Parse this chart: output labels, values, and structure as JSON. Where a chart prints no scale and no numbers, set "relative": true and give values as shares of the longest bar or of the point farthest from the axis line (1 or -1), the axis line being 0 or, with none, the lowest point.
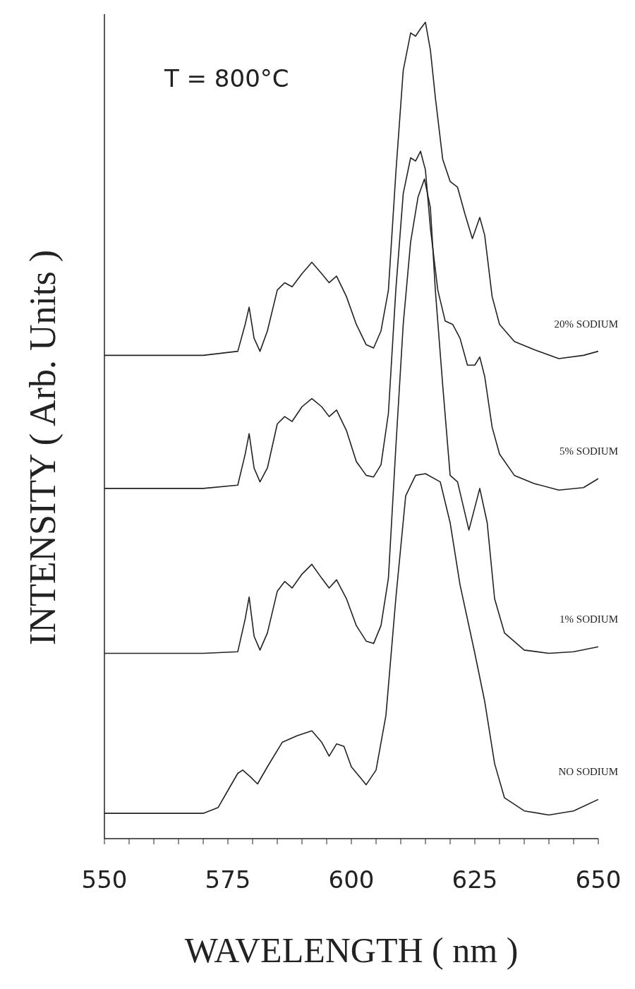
{
  "chart_data": {
    "type": "line",
    "relative": true,
    "xlabel": "WAVELENGTH ( nm )",
    "ylabel": "INTENSITY ( Arb. Units )",
    "annotations": [
      "T = 800°C"
    ],
    "marker": "none",
    "line_style": "solid",
    "xlim": [
      550,
      650
    ],
    "xticks": [
      550,
      {
        "value": 555,
        "label": null
      },
      {
        "value": 560,
        "label": null
      },
      {
        "value": 565,
        "label": null
      },
      {
        "value": 570,
        "label": null
      },
      575,
      {
        "value": 580,
        "label": null
      },
      {
        "value": 585,
        "label": null
      },
      {
        "value": 590,
        "label": null
      },
      {
        "value": 595,
        "label": null
      },
      600,
      {
        "value": 605,
        "label": null
      },
      {
        "value": 610,
        "label": null
      },
      {
        "value": 615,
        "label": null
      },
      {
        "value": 620,
        "label": null
      },
      625,
      {
        "value": 630,
        "label": null
      },
      {
        "value": 635,
        "label": null
      },
      {
        "value": 640,
        "label": null
      },
      {
        "value": 645,
        "label": null
      },
      650
    ],
    "series": [
      {
        "name": "20% SODIUM",
        "color": "#222222",
        "x": [
          550,
          570,
          577,
          578.5,
          579.3,
          580.3,
          581.5,
          583,
          585,
          586.5,
          588,
          590,
          592,
          594,
          595.5,
          597,
          599,
          601,
          603,
          604.5,
          606,
          607.5,
          609,
          610.5,
          612,
          613,
          614,
          615,
          616,
          617,
          618.5,
          620,
          621.5,
          623,
          624.5,
          626,
          627,
          628.5,
          630,
          633,
          637,
          642,
          647,
          650
        ],
        "values": [
          0.592,
          0.592,
          0.597,
          0.63,
          0.651,
          0.613,
          0.597,
          0.622,
          0.672,
          0.681,
          0.676,
          0.692,
          0.706,
          0.692,
          0.681,
          0.689,
          0.664,
          0.63,
          0.605,
          0.601,
          0.622,
          0.672,
          0.815,
          0.941,
          0.987,
          0.983,
          0.992,
          1.0,
          0.966,
          0.908,
          0.832,
          0.805,
          0.798,
          0.765,
          0.735,
          0.761,
          0.739,
          0.664,
          0.63,
          0.609,
          0.599,
          0.588,
          0.592,
          0.597
        ]
      },
      {
        "name": "5% SODIUM",
        "color": "#222222",
        "x": [
          550,
          570,
          577,
          578.5,
          579.3,
          580.3,
          581.5,
          583,
          585,
          586.5,
          588,
          590,
          592,
          594,
          595.5,
          597,
          599,
          601,
          603,
          604.5,
          606,
          607.5,
          609,
          610.5,
          612,
          613,
          614,
          615,
          616,
          617.5,
          619,
          620.5,
          622,
          623.5,
          625,
          626,
          627,
          628.5,
          630,
          633,
          637,
          642,
          647,
          650
        ],
        "values": [
          0.429,
          0.429,
          0.433,
          0.471,
          0.496,
          0.454,
          0.437,
          0.454,
          0.508,
          0.517,
          0.511,
          0.529,
          0.539,
          0.529,
          0.517,
          0.525,
          0.5,
          0.462,
          0.445,
          0.443,
          0.458,
          0.521,
          0.672,
          0.79,
          0.834,
          0.83,
          0.842,
          0.819,
          0.748,
          0.672,
          0.634,
          0.63,
          0.613,
          0.58,
          0.58,
          0.59,
          0.566,
          0.504,
          0.471,
          0.445,
          0.435,
          0.427,
          0.43,
          0.441
        ]
      },
      {
        "name": "1% SODIUM",
        "color": "#222222",
        "x": [
          550,
          570,
          577,
          578.5,
          579.3,
          580.3,
          581.5,
          583,
          585,
          586.5,
          588,
          590,
          592,
          594,
          595.5,
          597,
          599,
          601,
          603,
          604.5,
          606,
          607.5,
          609,
          610.5,
          612,
          613.5,
          614.8,
          616,
          617,
          618.5,
          620,
          621.5,
          623.8,
          626,
          627.5,
          629,
          631,
          635,
          640,
          645,
          650
        ],
        "values": [
          0.227,
          0.227,
          0.229,
          0.269,
          0.296,
          0.248,
          0.231,
          0.252,
          0.303,
          0.315,
          0.307,
          0.324,
          0.336,
          0.319,
          0.307,
          0.317,
          0.294,
          0.261,
          0.242,
          0.239,
          0.261,
          0.319,
          0.479,
          0.63,
          0.731,
          0.786,
          0.808,
          0.773,
          0.672,
          0.555,
          0.445,
          0.437,
          0.378,
          0.429,
          0.387,
          0.294,
          0.252,
          0.231,
          0.227,
          0.229,
          0.235
        ]
      },
      {
        "name": "NO SODIUM",
        "color": "#222222",
        "x": [
          550,
          570,
          573,
          575,
          577,
          578,
          579.5,
          581,
          583,
          586,
          589,
          592,
          594,
          595.5,
          597,
          598.5,
          600,
          603,
          605,
          607,
          609,
          611,
          613,
          615,
          618,
          620,
          622,
          625,
          627,
          629,
          631,
          635,
          640,
          645,
          650
        ],
        "values": [
          0.031,
          0.031,
          0.038,
          0.059,
          0.08,
          0.084,
          0.076,
          0.067,
          0.088,
          0.118,
          0.126,
          0.132,
          0.118,
          0.101,
          0.116,
          0.113,
          0.088,
          0.066,
          0.084,
          0.151,
          0.294,
          0.42,
          0.445,
          0.447,
          0.437,
          0.387,
          0.311,
          0.227,
          0.168,
          0.092,
          0.05,
          0.034,
          0.029,
          0.034,
          0.048
        ]
      }
    ]
  }
}
